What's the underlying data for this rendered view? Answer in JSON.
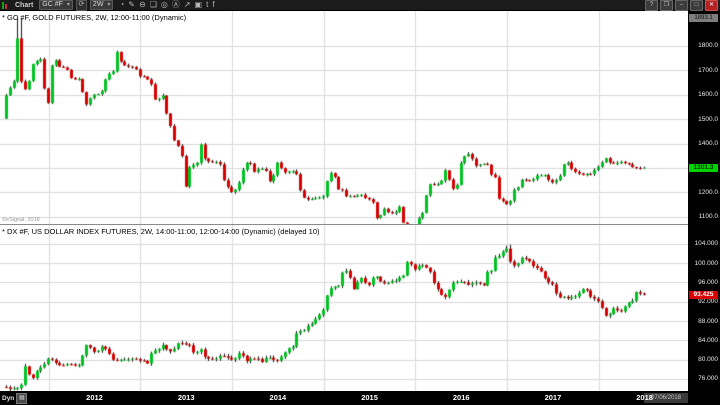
{
  "toolbar": {
    "tab_label": "Chart",
    "symbol_value": "GC #F",
    "interval_value": "2W",
    "symbol_dropdown_caret": "▾",
    "interval_dropdown_caret": "▾",
    "symbol_search_glyph": "⟳",
    "icons": [
      {
        "name": "time-frame-icon",
        "glyph": "◔"
      },
      {
        "name": "draw-pencil-icon",
        "glyph": "✎"
      },
      {
        "name": "remove-comment-icon",
        "glyph": "⊖"
      },
      {
        "name": "quote-bubble-icon",
        "glyph": "❏"
      },
      {
        "name": "circled-o-icon",
        "glyph": "◎"
      },
      {
        "name": "circled-a-icon",
        "glyph": "Ⓐ"
      },
      {
        "name": "share-arrow-icon",
        "glyph": "↗"
      },
      {
        "name": "chat-window-icon",
        "glyph": "▣"
      },
      {
        "name": "twitter-icon",
        "glyph": "t"
      },
      {
        "name": "facebook-icon",
        "glyph": "f"
      }
    ],
    "window_controls": [
      {
        "name": "help-button",
        "glyph": "?",
        "style": "gray"
      },
      {
        "name": "restore-button",
        "glyph": "❐",
        "style": "gray"
      },
      {
        "name": "minimize-button",
        "glyph": "–",
        "style": "gray"
      },
      {
        "name": "maximize-button",
        "glyph": "□",
        "style": "gray"
      },
      {
        "name": "close-button",
        "glyph": "✕",
        "style": "red"
      }
    ]
  },
  "gold_panel": {
    "title": "* GC #F, GOLD FUTURES, 2W, 12:00-11:00 (Dynamic)",
    "axis_labels": [
      "1800.0",
      "1700.0",
      "1600.0",
      "1500.0",
      "1400.0",
      "1300.0",
      "1200.0",
      "1100.0"
    ],
    "last_price_label": "1301.3",
    "high_box_label": "1893.1",
    "watermark": "©eSignal, 2018"
  },
  "dollar_panel": {
    "title": "* DX #F, US DOLLAR INDEX FUTURES, 2W, 14:00-11:00, 12:00-14:00 (Dynamic) (delayed 10)",
    "axis_labels": [
      "104.000",
      "100.000",
      "96.000",
      "92.000",
      "88.000",
      "84.000",
      "80.000",
      "76.000"
    ],
    "last_price_label": "93.425"
  },
  "bottom_bar": {
    "mode_label": "Dyn",
    "mode_icon_glyph": "▦",
    "years": [
      "2012",
      "2013",
      "2014",
      "2015",
      "2016",
      "2017",
      "2018"
    ],
    "date_label": "07/06/2018"
  },
  "colors": {
    "candle_up": "#00c322",
    "candle_down": "#d80000",
    "wick": "#1a1a1a",
    "grid": "#d9d9d9",
    "gold_tag_bg": "#00d400",
    "gold_tag_text": "#002a00",
    "dx_tag_bg": "#d80000",
    "dx_tag_text": "#ffffff",
    "axis_bg": "#000000",
    "plot_bg": "#ffffff"
  },
  "chart_data": [
    {
      "type": "candlestick",
      "symbol": "GC #F",
      "title": "GOLD FUTURES",
      "interval": "2W",
      "x_start": "2011-06",
      "x_end": "2018-06",
      "ylim": [
        1075,
        1938
      ],
      "y_gridlines": [
        1100,
        1200,
        1300,
        1400,
        1500,
        1600,
        1700,
        1800
      ],
      "last_price": 1301.3,
      "wick_scale": 8,
      "monthly_closes": [
        1502,
        1628,
        1830,
        1622,
        1725,
        1745,
        1566,
        1740,
        1711,
        1668,
        1664,
        1560,
        1600,
        1615,
        1685,
        1774,
        1720,
        1713,
        1675,
        1662,
        1580,
        1596,
        1472,
        1390,
        1224,
        1312,
        1396,
        1327,
        1324,
        1250,
        1202,
        1240,
        1321,
        1284,
        1296,
        1246,
        1322,
        1282,
        1286,
        1209,
        1171,
        1176,
        1184,
        1279,
        1213,
        1184,
        1182,
        1190,
        1172,
        1095,
        1133,
        1114,
        1141,
        1065,
        1060,
        1116,
        1234,
        1234,
        1290,
        1215,
        1320,
        1357,
        1309,
        1317,
        1273,
        1174,
        1152,
        1211,
        1252,
        1249,
        1269,
        1271,
        1241,
        1268,
        1322,
        1284,
        1271,
        1275,
        1305,
        1340,
        1318,
        1325,
        1315,
        1300,
        1301.3
      ],
      "spike_highs": {
        "3": 1921,
        "4": 1910
      },
      "spike_lows": {
        "107": 1047
      }
    },
    {
      "type": "candlestick",
      "symbol": "DX #F",
      "title": "US DOLLAR INDEX FUTURES",
      "interval": "2W",
      "x_start": "2011-06",
      "x_end": "2018-06",
      "ylim": [
        73.7,
        107.7
      ],
      "y_gridlines": [
        76,
        80,
        84,
        88,
        92,
        96,
        100,
        104
      ],
      "last_price": 93.425,
      "wick_scale": 0.5,
      "monthly_closes": [
        74.3,
        73.9,
        74.1,
        78.6,
        76.2,
        78.4,
        80.2,
        79.3,
        78.8,
        79.0,
        78.8,
        83.0,
        81.6,
        82.7,
        81.2,
        79.9,
        80.0,
        80.2,
        79.8,
        79.2,
        81.9,
        83.0,
        81.7,
        83.4,
        83.1,
        81.5,
        82.1,
        80.2,
        80.2,
        80.7,
        80.0,
        81.3,
        79.7,
        80.2,
        79.5,
        80.4,
        79.8,
        81.5,
        82.7,
        85.9,
        87.0,
        88.4,
        90.3,
        94.8,
        95.3,
        98.4,
        94.6,
        96.9,
        95.5,
        97.2,
        95.8,
        96.3,
        97.0,
        100.2,
        98.7,
        99.6,
        98.2,
        94.6,
        93.0,
        95.9,
        96.1,
        95.5,
        96.0,
        95.4,
        98.4,
        101.5,
        103.0,
        99.5,
        101.1,
        100.4,
        99.0,
        96.9,
        95.6,
        92.9,
        92.7,
        93.1,
        94.6,
        93.0,
        92.1,
        89.1,
        90.6,
        90.0,
        91.8,
        94.0,
        93.425
      ],
      "spike_highs": {
        "131": 103.6,
        "132": 103.82
      },
      "spike_lows": {
        "1": 72.9
      }
    }
  ]
}
